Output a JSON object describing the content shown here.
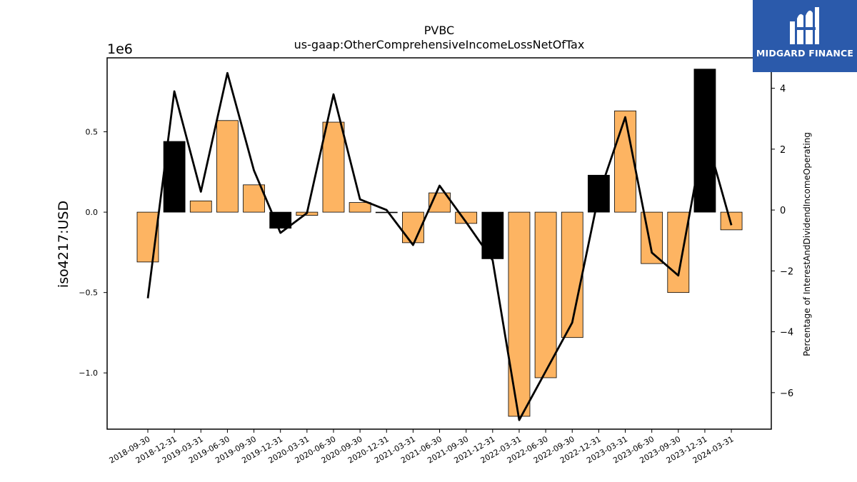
{
  "chart_data": {
    "type": "bar",
    "title": "PVBC",
    "subtitle": "us-gaap:OtherComprehensiveIncomeLossNetOfTax",
    "ylabel": "iso4217:USD",
    "y_offset_label": "1e6",
    "y2label": "Percentage of InterestAndDividendIncomeOperating",
    "ylim": [
      -1.35,
      0.96
    ],
    "y2lim": [
      -7.2,
      5.0
    ],
    "yticks": [
      -1.0,
      -0.5,
      0.0,
      0.5
    ],
    "ytick_labels": [
      "−1.0",
      "−0.5",
      "0.0",
      "0.5"
    ],
    "y2ticks": [
      -6,
      -4,
      -2,
      0,
      2,
      4
    ],
    "y2tick_labels": [
      "−6",
      "−4",
      "−2",
      "0",
      "2",
      "4"
    ],
    "categories": [
      "2018-09-30",
      "2018-12-31",
      "2019-03-31",
      "2019-06-30",
      "2019-09-30",
      "2019-12-31",
      "2020-03-31",
      "2020-06-30",
      "2020-09-30",
      "2020-12-31",
      "2021-03-31",
      "2021-06-30",
      "2021-09-30",
      "2021-12-31",
      "2022-03-31",
      "2022-06-30",
      "2022-09-30",
      "2022-12-31",
      "2023-03-31",
      "2023-06-30",
      "2023-09-30",
      "2023-12-31",
      "2024-03-31"
    ],
    "series": [
      {
        "values": [
          -0.31,
          0.44,
          0.07,
          0.57,
          0.17,
          -0.1,
          -0.02,
          0.56,
          0.06,
          0.0,
          -0.19,
          0.12,
          -0.07,
          -0.29,
          -1.27,
          -1.03,
          -0.78,
          0.23,
          0.63,
          -0.32,
          -0.5,
          0.89,
          -0.11
        ],
        "colors": [
          "#fdb462",
          "#000000",
          "#fdb462",
          "#fdb462",
          "#fdb462",
          "#000000",
          "#fdb462",
          "#fdb462",
          "#fdb462",
          "#fdb462",
          "#fdb462",
          "#fdb462",
          "#fdb462",
          "#000000",
          "#fdb462",
          "#fdb462",
          "#fdb462",
          "#000000",
          "#fdb462",
          "#fdb462",
          "#fdb462",
          "#000000",
          "#fdb462"
        ]
      },
      {
        "type": "line",
        "axis": "right",
        "color": "#000000",
        "values": [
          -2.9,
          3.9,
          0.6,
          4.5,
          1.3,
          -0.75,
          -0.1,
          3.8,
          0.35,
          0.0,
          -1.15,
          0.8,
          -0.4,
          -1.65,
          -6.9,
          -5.3,
          -3.7,
          0.5,
          3.05,
          -1.4,
          -2.15,
          2.6,
          -0.5
        ]
      }
    ],
    "grid": false
  },
  "logo": {
    "text": "MIDGARD FINANCE",
    "bg": "#2b5aab"
  }
}
